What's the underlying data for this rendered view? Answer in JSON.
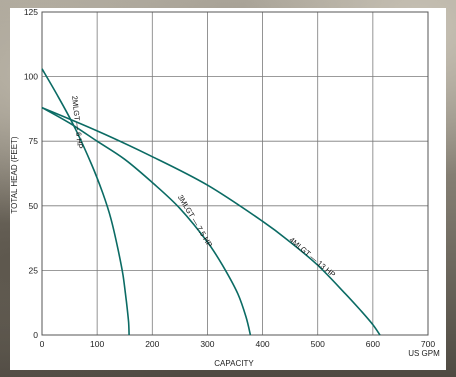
{
  "chart_data": {
    "type": "line",
    "xlabel": "CAPACITY",
    "ylabel": "TOTAL HEAD (FEET)",
    "x_unit": "US GPM",
    "xlim": [
      0,
      700
    ],
    "ylim": [
      0,
      125
    ],
    "x_ticks": [
      0,
      100,
      200,
      300,
      400,
      500,
      600,
      700
    ],
    "y_ticks": [
      0,
      25,
      50,
      75,
      100,
      125
    ],
    "grid": true,
    "series_color": "#0b6b64",
    "series": [
      {
        "name": "2MLGT — 6 HP",
        "x": [
          0,
          30,
          60,
          90,
          110,
          125,
          138,
          147,
          153,
          157,
          158
        ],
        "y": [
          103,
          92,
          80,
          66,
          55,
          45,
          33,
          23,
          13,
          5,
          0
        ]
      },
      {
        "name": "3MLGT — 7.5 HP",
        "x": [
          0,
          50,
          100,
          150,
          200,
          250,
          300,
          330,
          355,
          370,
          378
        ],
        "y": [
          88,
          82,
          75,
          68,
          59,
          49,
          36,
          26,
          16,
          7,
          0
        ]
      },
      {
        "name": "4MLGT — 13 HP",
        "x": [
          0,
          100,
          200,
          300,
          400,
          450,
          500,
          550,
          580,
          600,
          613
        ],
        "y": [
          88,
          79,
          69,
          58,
          44,
          36,
          27,
          16,
          9,
          4,
          0
        ]
      }
    ]
  }
}
